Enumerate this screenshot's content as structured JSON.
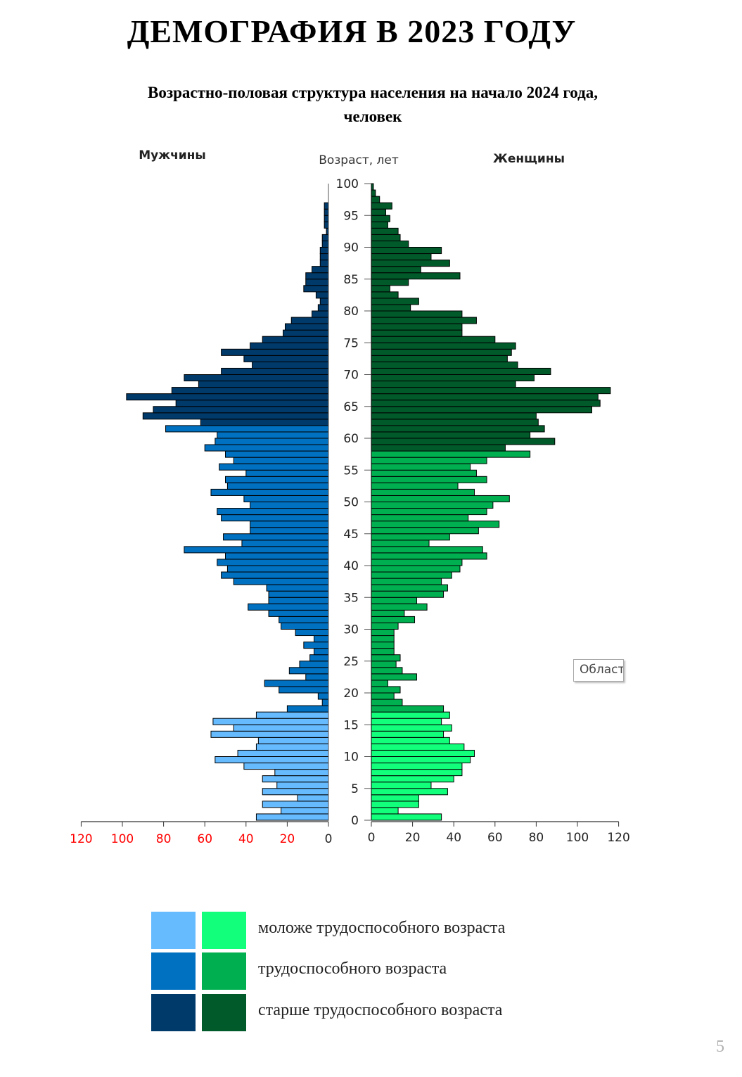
{
  "page": {
    "title": "ДЕМОГРАФИЯ В 2023 ГОДУ",
    "subtitle_line1": "Возрастно-половая структура населения на начало 2024 года,",
    "subtitle_line2": "человек",
    "page_number": "5",
    "tooltip_text": "Област"
  },
  "colors": {
    "male_young": "#66bbff",
    "male_working": "#0070c0",
    "male_old": "#003a6b",
    "female_young": "#11ff7a",
    "female_working": "#00b050",
    "female_old": "#005a2a",
    "left_axis_labels": "#ff0000"
  },
  "legend": [
    {
      "label": "моложе трудоспособного возраста",
      "male_color": "#66bbff",
      "female_color": "#11ff7a"
    },
    {
      "label": "трудоспособного возраста",
      "male_color": "#0070c0",
      "female_color": "#00b050"
    },
    {
      "label": "старше трудоспособного возраста",
      "male_color": "#003a6b",
      "female_color": "#005a2a"
    }
  ],
  "chart_data": {
    "type": "bar",
    "orientation": "horizontal",
    "male_label": "Мужчины",
    "female_label": "Женщины",
    "age_axis_label": "Возраст, лет",
    "age_ticks": [
      0,
      5,
      10,
      15,
      20,
      25,
      30,
      35,
      40,
      45,
      50,
      55,
      60,
      65,
      70,
      75,
      80,
      85,
      90,
      95,
      100
    ],
    "value_ticks": [
      0,
      20,
      40,
      60,
      80,
      100,
      120
    ],
    "xlim": [
      0,
      120
    ],
    "age_range": [
      0,
      99
    ],
    "male_groups": {
      "young": [
        0,
        16
      ],
      "working": [
        17,
        61
      ],
      "old": [
        62,
        99
      ]
    },
    "female_groups": {
      "young": [
        0,
        16
      ],
      "working": [
        17,
        57
      ],
      "old": [
        58,
        99
      ]
    },
    "ages": [
      0,
      1,
      2,
      3,
      4,
      5,
      6,
      7,
      8,
      9,
      10,
      11,
      12,
      13,
      14,
      15,
      16,
      17,
      18,
      19,
      20,
      21,
      22,
      23,
      24,
      25,
      26,
      27,
      28,
      29,
      30,
      31,
      32,
      33,
      34,
      35,
      36,
      37,
      38,
      39,
      40,
      41,
      42,
      43,
      44,
      45,
      46,
      47,
      48,
      49,
      50,
      51,
      52,
      53,
      54,
      55,
      56,
      57,
      58,
      59,
      60,
      61,
      62,
      63,
      64,
      65,
      66,
      67,
      68,
      69,
      70,
      71,
      72,
      73,
      74,
      75,
      76,
      77,
      78,
      79,
      80,
      81,
      82,
      83,
      84,
      85,
      86,
      87,
      88,
      89,
      90,
      91,
      92,
      93,
      94,
      95,
      96,
      97,
      98,
      99
    ],
    "series": [
      {
        "name": "Мужчины",
        "values": [
          35,
          23,
          32,
          15,
          32,
          25,
          32,
          26,
          41,
          55,
          44,
          35,
          34,
          57,
          46,
          56,
          35,
          20,
          3,
          5,
          24,
          31,
          11,
          19,
          14,
          9,
          7,
          12,
          7,
          16,
          23,
          24,
          29,
          39,
          29,
          29,
          30,
          46,
          52,
          49,
          54,
          50,
          70,
          42,
          51,
          38,
          38,
          52,
          54,
          38,
          41,
          57,
          49,
          50,
          40,
          53,
          46,
          50,
          60,
          55,
          54,
          79,
          62,
          90,
          85,
          74,
          98,
          76,
          63,
          70,
          52,
          37,
          41,
          52,
          38,
          32,
          22,
          21,
          18,
          8,
          5,
          4,
          6,
          12,
          11,
          11,
          8,
          4,
          4,
          4,
          3,
          3,
          1,
          2,
          2,
          2,
          2,
          0,
          0,
          0
        ]
      },
      {
        "name": "Женщины",
        "values": [
          34,
          13,
          23,
          23,
          37,
          29,
          40,
          44,
          44,
          48,
          50,
          45,
          38,
          35,
          39,
          34,
          38,
          35,
          15,
          11,
          14,
          8,
          22,
          15,
          12,
          14,
          11,
          11,
          11,
          11,
          13,
          21,
          16,
          27,
          22,
          35,
          37,
          34,
          39,
          43,
          44,
          56,
          54,
          28,
          38,
          52,
          62,
          47,
          56,
          59,
          67,
          50,
          42,
          56,
          51,
          48,
          56,
          77,
          65,
          89,
          77,
          84,
          81,
          80,
          107,
          111,
          110,
          116,
          70,
          79,
          87,
          71,
          66,
          68,
          70,
          60,
          44,
          44,
          51,
          44,
          19,
          23,
          13,
          9,
          18,
          43,
          24,
          38,
          29,
          34,
          18,
          14,
          13,
          8,
          9,
          7,
          10,
          4,
          2,
          1
        ]
      }
    ]
  }
}
